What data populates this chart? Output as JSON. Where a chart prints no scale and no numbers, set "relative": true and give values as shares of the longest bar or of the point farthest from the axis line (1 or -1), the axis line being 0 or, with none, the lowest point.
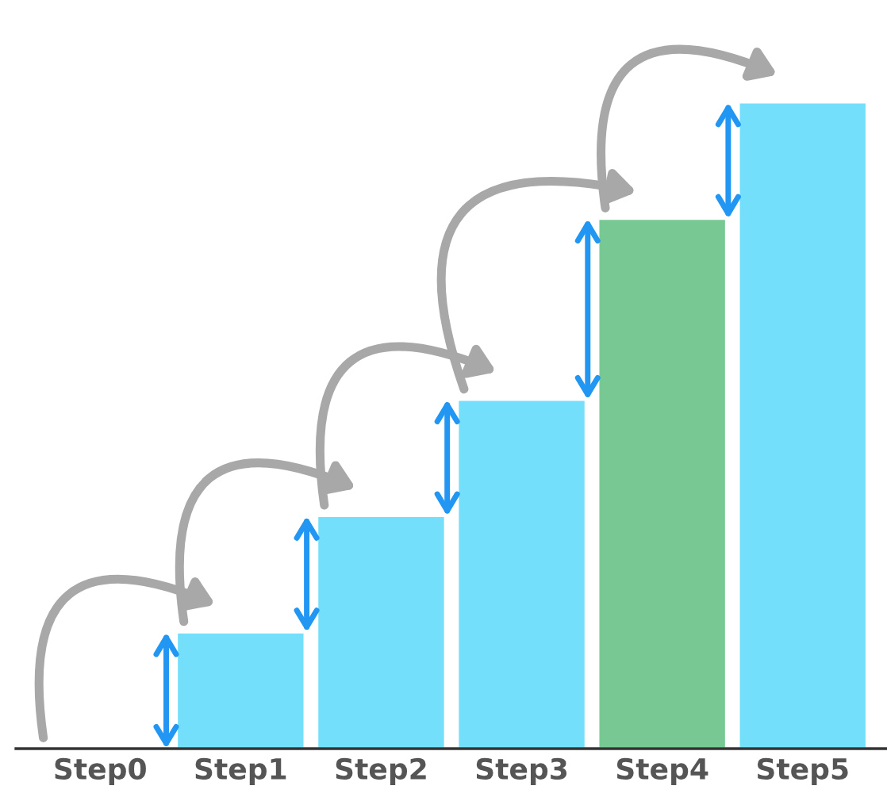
{
  "chart_data": {
    "type": "bar",
    "relative": true,
    "categories": [
      "Step0",
      "Step1",
      "Step2",
      "Step3",
      "Step4",
      "Step5"
    ],
    "values": [
      null,
      0.18,
      0.36,
      0.54,
      0.82,
      1
    ],
    "colors": [
      null,
      "#73dffa",
      "#73dffa",
      "#73dffa",
      "#78c893",
      "#73dffa"
    ]
  }
}
